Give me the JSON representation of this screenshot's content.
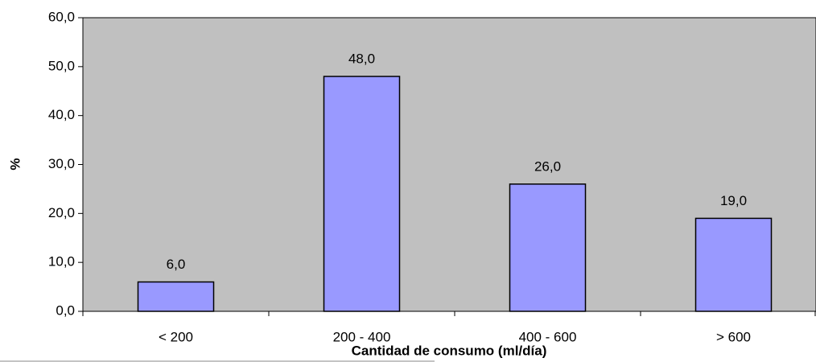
{
  "chart_data": {
    "type": "bar",
    "x_label": "Cantidad de consumo (ml/día)",
    "y_label": "%",
    "categories": [
      "< 200",
      "200 - 400",
      "400 - 600",
      "> 600"
    ],
    "values": [
      6,
      48,
      26,
      19
    ],
    "value_labels": [
      "6,0",
      "48,0",
      "26,0",
      "19,0"
    ],
    "color": "#9999ff",
    "ylim": [
      0,
      60
    ],
    "yticks": [
      {
        "value": 0,
        "label": "0,0"
      },
      {
        "value": 10,
        "label": "10,0"
      },
      {
        "value": 20,
        "label": "20,0"
      },
      {
        "value": 30,
        "label": "30,0"
      },
      {
        "value": 40,
        "label": "40,0"
      },
      {
        "value": 50,
        "label": "50,0"
      },
      {
        "value": 60,
        "label": "60,0"
      }
    ],
    "grid": false
  }
}
